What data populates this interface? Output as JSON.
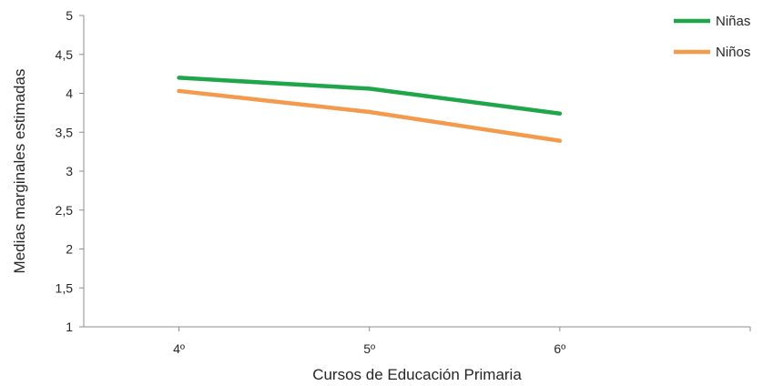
{
  "chart_data": {
    "type": "line",
    "xlabel": "Cursos de Educación Primaria",
    "ylabel": "Medias marginales estimadas",
    "categories": [
      "4º",
      "5º",
      "6º"
    ],
    "ylim": [
      1,
      5
    ],
    "yticks": [
      "1",
      "1,5",
      "2",
      "2,5",
      "3",
      "3,5",
      "4",
      "4,5",
      "5"
    ],
    "grid": false,
    "legend_position": "top-right",
    "series": [
      {
        "name": "Niñas",
        "color": "#1fa64a",
        "values": [
          4.2,
          4.06,
          3.74
        ]
      },
      {
        "name": "Niños",
        "color": "#f39a4d",
        "values": [
          4.03,
          3.76,
          3.39
        ]
      }
    ]
  }
}
